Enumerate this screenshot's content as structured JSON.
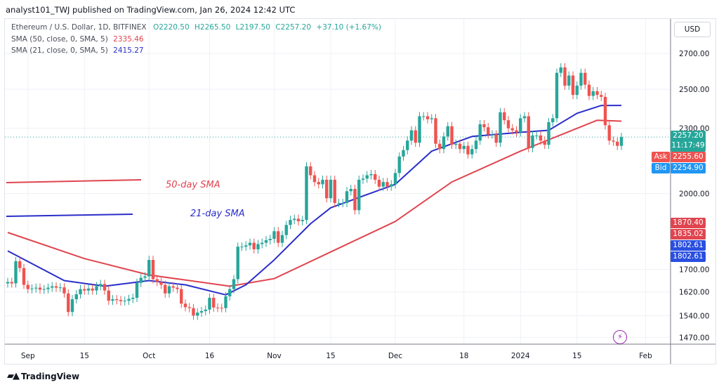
{
  "header": {
    "published": "analyst101_TWJ published on TradingView.com, Jan 26, 2024 12:42 UTC"
  },
  "legend": {
    "symbol": "Ethereum / U.S. Dollar, 1D, BITFINEX",
    "open": "O2220.50",
    "high": "H2265.50",
    "low": "L2197.50",
    "close": "C2257.20",
    "change": "+37.10 (+1.67%)",
    "sma50_label": "SMA (50, close, 0, SMA, 5)",
    "sma50_value": "2335.46",
    "sma21_label": "SMA (21, close, 0, SMA, 5)",
    "sma21_value": "2415.27"
  },
  "currency": "USD",
  "badges": {
    "last_price": "2257.20",
    "countdown": "11:17:49",
    "ask_label": "Ask",
    "ask": "2255.60",
    "bid_label": "Bid",
    "bid": "2254.90",
    "sma50_hi": "1870.40",
    "sma50_lo": "1835.02",
    "sma21_a": "1802.61",
    "sma21_b": "1802.61"
  },
  "annotations": {
    "sma50": "50-day SMA",
    "sma21": "21-day SMA"
  },
  "footer": {
    "brand": "TradingView"
  },
  "colors": {
    "up": "#26a69a",
    "down": "#ef5350",
    "sma50": "#e0454f",
    "sma21": "#2a2ec9",
    "ask": "#ef5350",
    "bid": "#2196f3"
  },
  "chart_data": {
    "type": "candlestick",
    "scale": "log",
    "ylim": [
      1440,
      2760
    ],
    "y_ticks": [
      "2700.00",
      "2500.00",
      "2300.00",
      "2000.00",
      "1700.00",
      "1620.00",
      "1540.00",
      "1470.00"
    ],
    "x_ticks": [
      {
        "label": "Sep",
        "date": "2023-09-01"
      },
      {
        "label": "15",
        "date": "2023-09-15"
      },
      {
        "label": "Oct",
        "date": "2023-10-01"
      },
      {
        "label": "16",
        "date": "2023-10-16"
      },
      {
        "label": "Nov",
        "date": "2023-11-01"
      },
      {
        "label": "15",
        "date": "2023-11-15"
      },
      {
        "label": "Dec",
        "date": "2023-12-01"
      },
      {
        "label": "18",
        "date": "2023-12-18"
      },
      {
        "label": "2024",
        "date": "2024-01-01"
      },
      {
        "label": "15",
        "date": "2024-01-15"
      },
      {
        "label": "Feb",
        "date": "2024-02-01"
      }
    ],
    "start_date": "2023-08-27",
    "first_open": 1650,
    "close": [
      1655,
      1650,
      1730,
      1705,
      1645,
      1630,
      1632,
      1635,
      1628,
      1630,
      1635,
      1640,
      1635,
      1636,
      1615,
      1552,
      1595,
      1612,
      1630,
      1625,
      1632,
      1625,
      1640,
      1648,
      1625,
      1590,
      1595,
      1592,
      1588,
      1590,
      1596,
      1600,
      1652,
      1670,
      1675,
      1735,
      1665,
      1655,
      1645,
      1615,
      1640,
      1635,
      1630,
      1580,
      1568,
      1565,
      1540,
      1550,
      1555,
      1560,
      1600,
      1567,
      1566,
      1565,
      1605,
      1630,
      1665,
      1785,
      1785,
      1790,
      1800,
      1775,
      1795,
      1800,
      1810,
      1815,
      1845,
      1800,
      1830,
      1870,
      1890,
      1895,
      1885,
      1890,
      2120,
      2080,
      2050,
      2040,
      2060,
      1980,
      2060,
      1960,
      1960,
      1960,
      2010,
      2020,
      1930,
      2060,
      2065,
      2080,
      2085,
      2060,
      2030,
      2050,
      2030,
      2040,
      2090,
      2165,
      2195,
      2240,
      2290,
      2230,
      2360,
      2360,
      2345,
      2350,
      2225,
      2200,
      2260,
      2310,
      2220,
      2225,
      2200,
      2215,
      2175,
      2200,
      2240,
      2320,
      2305,
      2270,
      2270,
      2230,
      2380,
      2340,
      2300,
      2290,
      2280,
      2350,
      2360,
      2205,
      2265,
      2265,
      2240,
      2220,
      2330,
      2350,
      2590,
      2620,
      2520,
      2575,
      2470,
      2520,
      2590,
      2525,
      2465,
      2490,
      2470,
      2460,
      2315,
      2240,
      2235,
      2215,
      2257.2
    ],
    "sma50": [
      [
        "2023-08-27",
        1840
      ],
      [
        "2023-09-15",
        1740
      ],
      [
        "2023-10-01",
        1680
      ],
      [
        "2023-10-21",
        1640
      ],
      [
        "2023-11-01",
        1667
      ],
      [
        "2023-11-15",
        1765
      ],
      [
        "2023-12-01",
        1884
      ],
      [
        "2023-12-15",
        2050
      ],
      [
        "2024-01-01",
        2190
      ],
      [
        "2024-01-10",
        2260
      ],
      [
        "2024-01-20",
        2340
      ],
      [
        "2024-01-26",
        2335.46
      ]
    ],
    "sma21": [
      [
        "2023-08-27",
        1769
      ],
      [
        "2023-09-10",
        1660
      ],
      [
        "2023-09-20",
        1640
      ],
      [
        "2023-10-01",
        1660
      ],
      [
        "2023-10-10",
        1645
      ],
      [
        "2023-10-20",
        1610
      ],
      [
        "2023-10-25",
        1645
      ],
      [
        "2023-11-01",
        1735
      ],
      [
        "2023-11-10",
        1875
      ],
      [
        "2023-11-15",
        1940
      ],
      [
        "2023-12-01",
        2040
      ],
      [
        "2023-12-10",
        2190
      ],
      [
        "2023-12-20",
        2260
      ],
      [
        "2024-01-01",
        2280
      ],
      [
        "2024-01-08",
        2290
      ],
      [
        "2024-01-15",
        2375
      ],
      [
        "2024-01-21",
        2415
      ],
      [
        "2024-01-26",
        2415.27
      ]
    ],
    "current_price": 2257.2
  }
}
